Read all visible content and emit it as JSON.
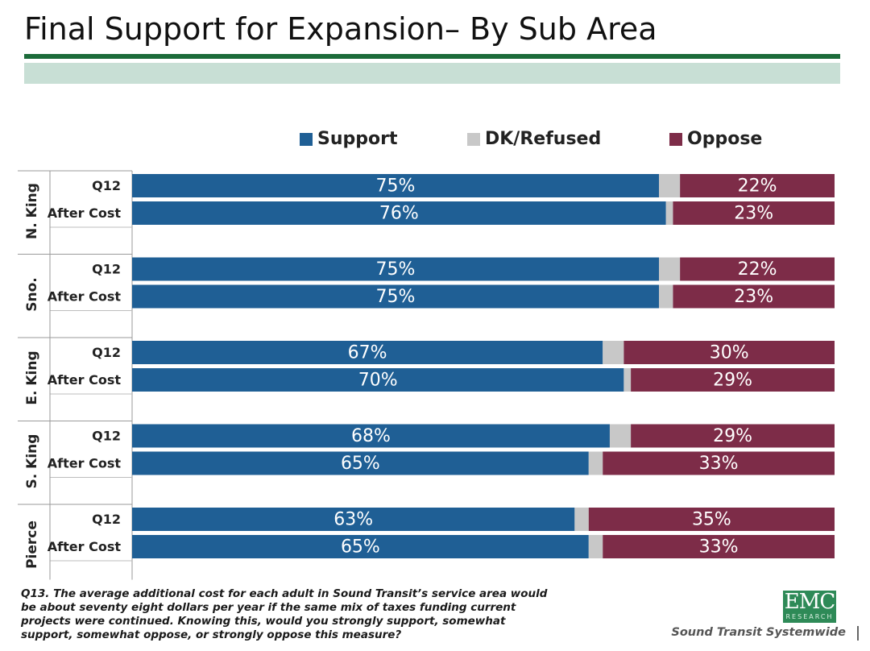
{
  "title": "Final Support for Expansion– By Sub Area",
  "footnote": "Q13. The average additional cost for each adult in Sound Transit’s service area would be about seventy eight dollars per year if the same mix of taxes funding current projects were continued. Knowing this, would you strongly support, somewhat support, somewhat oppose, or strongly oppose this measure?",
  "brand": {
    "logo_text": "EMC",
    "logo_subtext": "RESEARCH",
    "tagline": "Sound Transit Systemwide"
  },
  "colors": {
    "support": "#1f5f95",
    "dk": "#c8c8c8",
    "oppose": "#7d2c48",
    "title_rule": "#1c6b3a",
    "title_band": "#c8dfd5"
  },
  "chart_data": {
    "type": "bar",
    "orientation": "horizontal",
    "stacked": true,
    "xlim": [
      0,
      100
    ],
    "legend_position": "top",
    "series": [
      {
        "name": "Support",
        "key": "support"
      },
      {
        "name": "DK/Refused",
        "key": "dk"
      },
      {
        "name": "Oppose",
        "key": "oppose"
      }
    ],
    "groups": [
      {
        "name": "N. King",
        "rows": [
          {
            "label": "Q12",
            "support": 75,
            "dk": 3,
            "oppose": 22
          },
          {
            "label": "After Cost",
            "support": 76,
            "dk": 1,
            "oppose": 23
          }
        ]
      },
      {
        "name": "Sno.",
        "rows": [
          {
            "label": "Q12",
            "support": 75,
            "dk": 3,
            "oppose": 22
          },
          {
            "label": "After Cost",
            "support": 75,
            "dk": 2,
            "oppose": 23
          }
        ]
      },
      {
        "name": "E. King",
        "rows": [
          {
            "label": "Q12",
            "support": 67,
            "dk": 3,
            "oppose": 30
          },
          {
            "label": "After Cost",
            "support": 70,
            "dk": 1,
            "oppose": 29
          }
        ]
      },
      {
        "name": "S. King",
        "rows": [
          {
            "label": "Q12",
            "support": 68,
            "dk": 3,
            "oppose": 29
          },
          {
            "label": "After Cost",
            "support": 65,
            "dk": 2,
            "oppose": 33
          }
        ]
      },
      {
        "name": "Pierce",
        "rows": [
          {
            "label": "Q12",
            "support": 63,
            "dk": 2,
            "oppose": 35
          },
          {
            "label": "After Cost",
            "support": 65,
            "dk": 2,
            "oppose": 33
          }
        ]
      }
    ],
    "data_labels": {
      "support": "percent",
      "oppose": "percent",
      "dk": "none"
    }
  }
}
